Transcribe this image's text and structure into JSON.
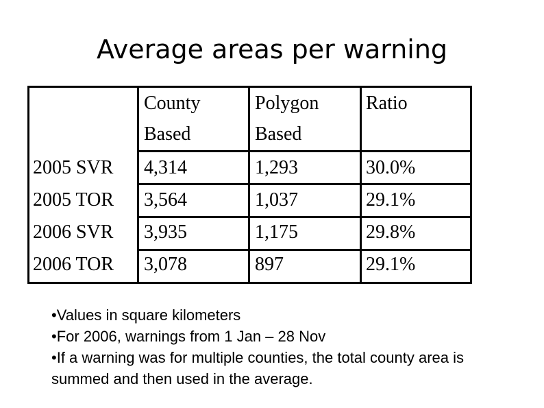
{
  "title": "Average areas per warning",
  "table": {
    "columns": [
      "County Based",
      "Polygon Based",
      "Ratio"
    ],
    "rows": [
      [
        "2005 SVR",
        "4,314",
        "1,293",
        "30.0%"
      ],
      [
        "2005 TOR",
        "3,564",
        "1,037",
        "29.1%"
      ],
      [
        "2006 SVR",
        "3,935",
        "1,175",
        "29.8%"
      ],
      [
        "2006 TOR",
        "3,078",
        "897",
        "29.1%"
      ]
    ]
  },
  "notes": [
    "•Values in square kilometers",
    "•For 2006, warnings from 1 Jan – 28 Nov",
    "•If a warning was for multiple counties, the total county area is summed and then used in the average."
  ]
}
